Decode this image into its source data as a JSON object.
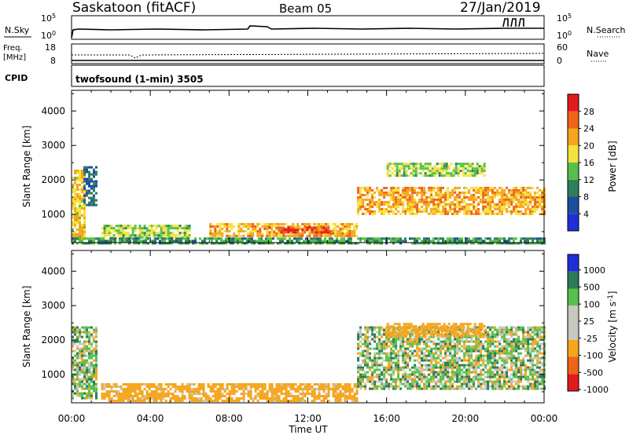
{
  "header": {
    "station": "Saskatoon (fitACF)",
    "beam": "Beam 05",
    "date": "27/Jan/2019"
  },
  "noise_panel": {
    "left_label": "N.Sky",
    "left_ticks": [
      "10^5",
      "10^0"
    ],
    "right_label": "N.Search",
    "right_ticks": [
      "10^5",
      "10^0"
    ]
  },
  "freq_panel": {
    "left_label_1": "Freq.",
    "left_label_2": "[MHz]",
    "left_ticks": [
      "18",
      "8"
    ],
    "right_label": "Nave",
    "right_ticks": [
      "60",
      "0"
    ]
  },
  "cpid_panel": {
    "label": "CPID",
    "mode": "twofsound (1-min) 3505"
  },
  "chart_data": [
    {
      "type": "heatmap",
      "name": "power",
      "xlabel": "Time UT",
      "ylabel": "Slant Range [km]",
      "xlim": [
        0,
        24
      ],
      "ylim": [
        180,
        4600
      ],
      "yticks": [
        "1000",
        "2000",
        "3000",
        "4000"
      ],
      "xticks": [
        "00:00",
        "04:00",
        "08:00",
        "12:00",
        "16:00",
        "20:00",
        "00:00"
      ],
      "colorbar": {
        "label": "Power [dB]",
        "ticks": [
          "4",
          "8",
          "12",
          "16",
          "20",
          "24",
          "28"
        ],
        "colors": [
          "#1f2fd8",
          "#1b4fa0",
          "#2f7f5c",
          "#55c04a",
          "#f5e23c",
          "#f6a51c",
          "#ef6418",
          "#e31a1c"
        ]
      },
      "regions": [
        {
          "t0": 0.0,
          "t1": 0.6,
          "r0": 300,
          "r1": 2300,
          "power": 18
        },
        {
          "t0": 0.6,
          "t1": 1.2,
          "r0": 1300,
          "r1": 2400,
          "power": 6
        },
        {
          "t0": 1.5,
          "t1": 6.0,
          "r0": 350,
          "r1": 700,
          "power": 14
        },
        {
          "t0": 7.0,
          "t1": 14.5,
          "r0": 350,
          "r1": 750,
          "power": 20
        },
        {
          "t0": 10.0,
          "t1": 13.0,
          "r0": 450,
          "r1": 650,
          "power": 26
        },
        {
          "t0": 14.5,
          "t1": 24.0,
          "r0": 1000,
          "r1": 1800,
          "power": 20
        },
        {
          "t0": 16.0,
          "t1": 21.0,
          "r0": 2100,
          "r1": 2500,
          "power": 14
        },
        {
          "t0": 0.0,
          "t1": 24.0,
          "r0": 180,
          "r1": 330,
          "power": 10
        }
      ]
    },
    {
      "type": "heatmap",
      "name": "velocity",
      "xlabel": "Time UT",
      "ylabel": "Slant Range [km]",
      "xlim": [
        0,
        24
      ],
      "ylim": [
        180,
        4600
      ],
      "yticks": [
        "1000",
        "2000",
        "3000",
        "4000"
      ],
      "xticks": [
        "00:00",
        "04:00",
        "08:00",
        "12:00",
        "16:00",
        "20:00",
        "00:00"
      ],
      "colorbar": {
        "label": "Velocity [m s^-1]",
        "ticks": [
          "1000",
          "500",
          "100",
          "25",
          "-25",
          "-100",
          "-500",
          "-1000"
        ],
        "colors": [
          "#1f2fd8",
          "#2b7a5a",
          "#55c04a",
          "#c8c8c0",
          "#c8c8c0",
          "#f6a51c",
          "#ef6418",
          "#e31a1c"
        ]
      },
      "regions": [
        {
          "t0": 0.0,
          "t1": 1.2,
          "r0": 300,
          "r1": 2400,
          "velocity": 0
        },
        {
          "t0": 1.5,
          "t1": 14.5,
          "r0": 250,
          "r1": 750,
          "velocity": -150
        },
        {
          "t0": 14.5,
          "t1": 24.0,
          "r0": 600,
          "r1": 2400,
          "velocity": 0
        },
        {
          "t0": 16.0,
          "t1": 21.0,
          "r0": 2100,
          "r1": 2500,
          "velocity": -400
        }
      ]
    }
  ]
}
